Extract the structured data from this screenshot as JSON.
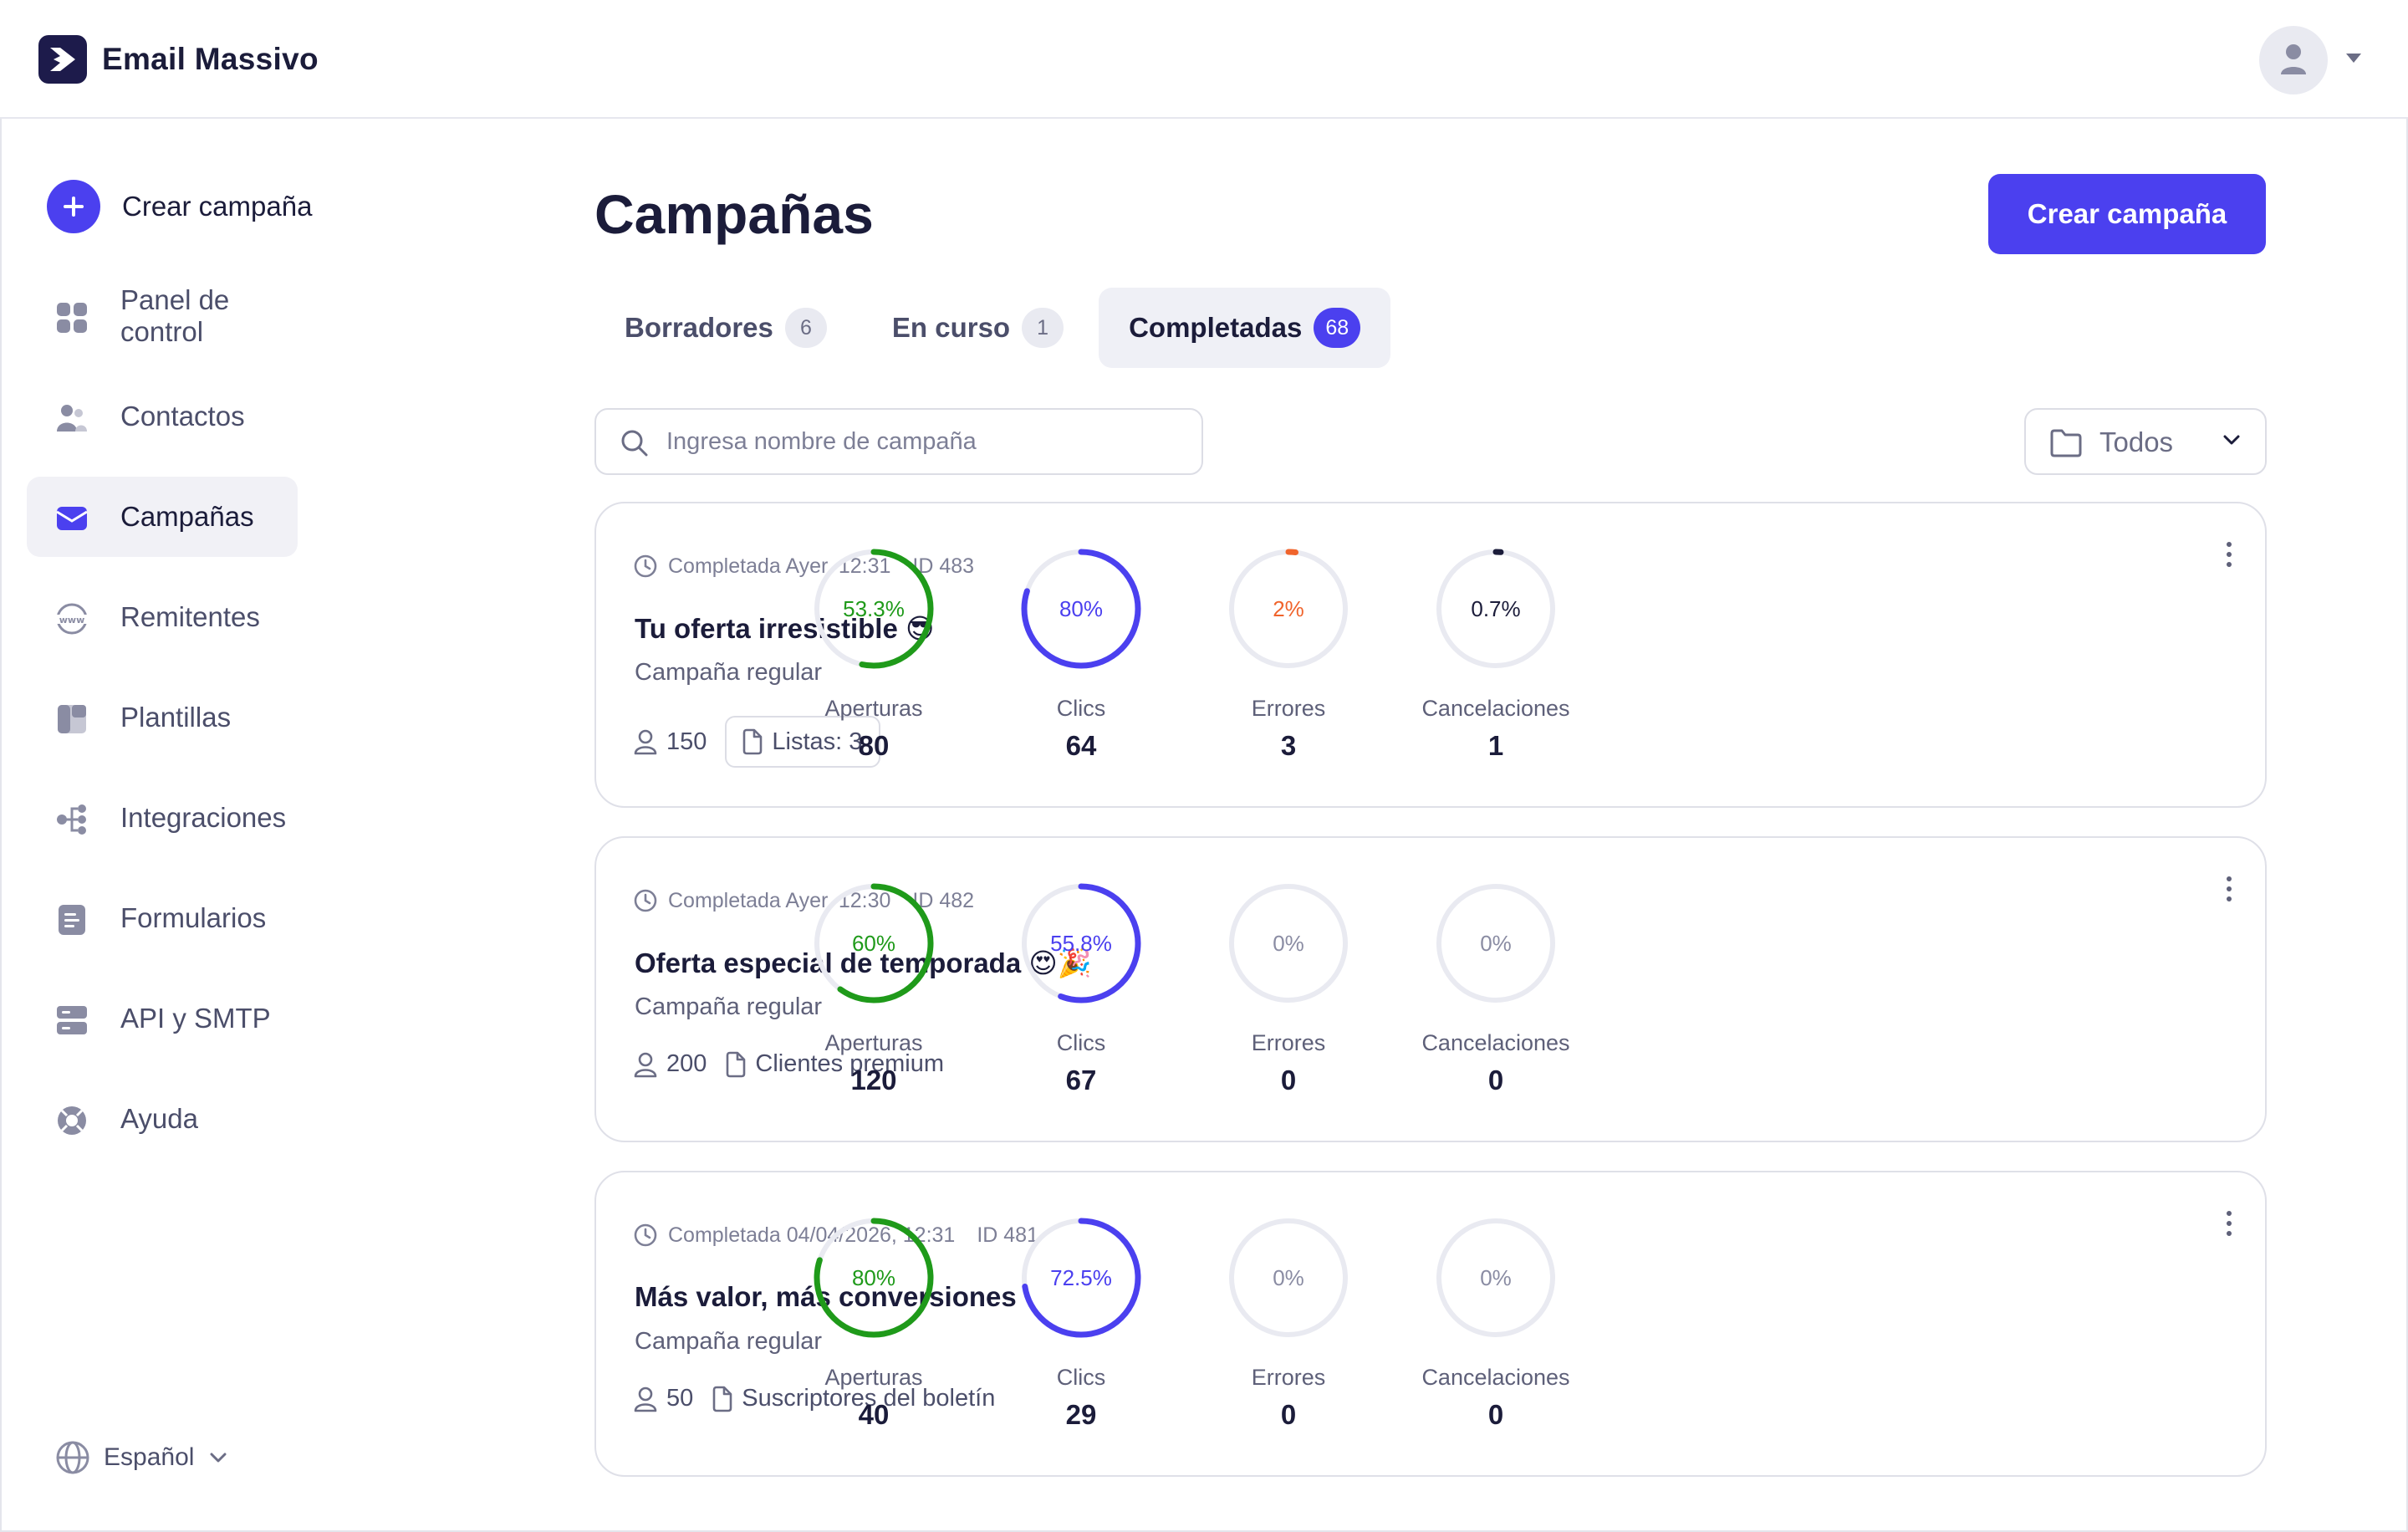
{
  "app": {
    "name": "Email Massivo"
  },
  "sidebar": {
    "create_label": "Crear campaña",
    "items": [
      {
        "label": "Panel de control",
        "icon": "dashboard-icon"
      },
      {
        "label": "Contactos",
        "icon": "contacts-icon"
      },
      {
        "label": "Campañas",
        "icon": "campaigns-icon",
        "active": true
      },
      {
        "label": "Remitentes",
        "icon": "www-icon"
      },
      {
        "label": "Plantillas",
        "icon": "templates-icon"
      },
      {
        "label": "Integraciones",
        "icon": "integrations-icon"
      },
      {
        "label": "Formularios",
        "icon": "forms-icon"
      },
      {
        "label": "API y SMTP",
        "icon": "server-icon"
      },
      {
        "label": "Ayuda",
        "icon": "help-icon"
      }
    ],
    "language": "Español"
  },
  "main": {
    "title": "Campañas",
    "create_button": "Crear campaña",
    "tabs": [
      {
        "label": "Borradores",
        "count": "6"
      },
      {
        "label": "En curso",
        "count": "1"
      },
      {
        "label": "Completadas",
        "count": "68",
        "active": true
      }
    ],
    "search": {
      "placeholder": "Ingresa nombre de campaña",
      "value": ""
    },
    "filter": {
      "label": "Todos"
    }
  },
  "colors": {
    "accent": "#4b40ef",
    "opens": "#1f9a1a",
    "clicks": "#4b40ef",
    "errors": "#f0642c",
    "cancels": "#1b1c3a",
    "track": "#e9eaf1"
  },
  "campaigns": [
    {
      "status": "Completada Ayer, 12:31",
      "id": "ID 483",
      "name": "Tu oferta irresistible 😎",
      "type": "Campaña regular",
      "recipients": "150",
      "lists": "Listas: 3",
      "lists_boxed": true,
      "stats": [
        {
          "label": "Aperturas",
          "pct": "53.3%",
          "fraction": 0.533,
          "value": "80"
        },
        {
          "label": "Clics",
          "pct": "80%",
          "fraction": 0.8,
          "value": "64"
        },
        {
          "label": "Errores",
          "pct": "2%",
          "fraction": 0.02,
          "value": "3"
        },
        {
          "label": "Cancelaciones",
          "pct": "0.7%",
          "fraction": 0.007,
          "value": "1"
        }
      ]
    },
    {
      "status": "Completada Ayer, 12:30",
      "id": "ID 482",
      "name": "Oferta especial de temporada 😍🎉",
      "type": "Campaña regular",
      "recipients": "200",
      "lists": "Clientes premium",
      "lists_boxed": false,
      "stats": [
        {
          "label": "Aperturas",
          "pct": "60%",
          "fraction": 0.6,
          "value": "120"
        },
        {
          "label": "Clics",
          "pct": "55.8%",
          "fraction": 0.558,
          "value": "67"
        },
        {
          "label": "Errores",
          "pct": "0%",
          "fraction": 0,
          "value": "0"
        },
        {
          "label": "Cancelaciones",
          "pct": "0%",
          "fraction": 0,
          "value": "0"
        }
      ]
    },
    {
      "status": "Completada 04/04/2026, 12:31",
      "id": "ID 481",
      "name": "Más valor, más conversiones",
      "type": "Campaña regular",
      "recipients": "50",
      "lists": "Suscriptores del boletín",
      "lists_boxed": false,
      "stats": [
        {
          "label": "Aperturas",
          "pct": "80%",
          "fraction": 0.8,
          "value": "40"
        },
        {
          "label": "Clics",
          "pct": "72.5%",
          "fraction": 0.725,
          "value": "29"
        },
        {
          "label": "Errores",
          "pct": "0%",
          "fraction": 0,
          "value": "0"
        },
        {
          "label": "Cancelaciones",
          "pct": "0%",
          "fraction": 0,
          "value": "0"
        }
      ]
    }
  ]
}
